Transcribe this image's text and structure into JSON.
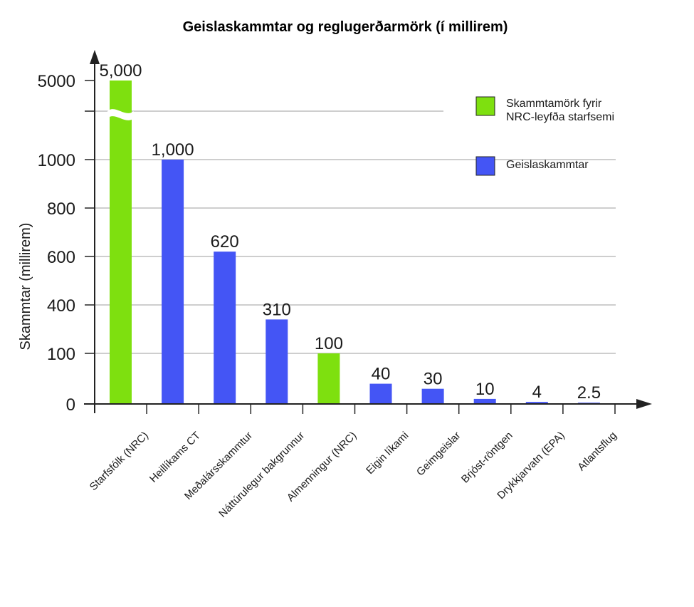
{
  "chart_data": {
    "type": "bar",
    "title": "Geislaskammtar og reglugerðarmörk (í millirem)",
    "ylabel": "Skammtar (millirem)",
    "xlabel": "",
    "ylim": [
      0,
      5000
    ],
    "y_axis_break": true,
    "y_ticks": [
      "0",
      "100",
      "400",
      "600",
      "800",
      "1000",
      "5000"
    ],
    "grid": true,
    "legend_position": "top-right",
    "categories": [
      "Starfsfólk (NRC)",
      "Heillíkams CT",
      "Meðalársskammtur",
      "Náttúrulegur bakgrunnur",
      "Almenningur (NRC)",
      "Eigin líkami",
      "Geimgeislar",
      "Brjóst-röntgen",
      "Drykkjarvatn (EPA)",
      "Atlantsflug"
    ],
    "values": [
      5000,
      1000,
      620,
      310,
      100,
      40,
      30,
      10,
      4,
      2.5
    ],
    "data_labels": [
      "5,000",
      "1,000",
      "620",
      "310",
      "100",
      "40",
      "30",
      "10",
      "4",
      "2.5"
    ],
    "series": [
      {
        "name": "Skammtamörk fyrir NRC-leyfða starfsemi",
        "color": "#7ee00f"
      },
      {
        "name": "Geislaskammtar",
        "color": "#4455f5"
      }
    ],
    "bar_series": [
      0,
      1,
      1,
      1,
      0,
      1,
      1,
      1,
      1,
      1
    ],
    "legend": [
      {
        "lines": [
          "Skammtamörk fyrir",
          "NRC-leyfða starfsemi"
        ],
        "color": "#7ee00f"
      },
      {
        "lines": [
          "Geislaskammtar"
        ],
        "color": "#4455f5"
      }
    ]
  }
}
